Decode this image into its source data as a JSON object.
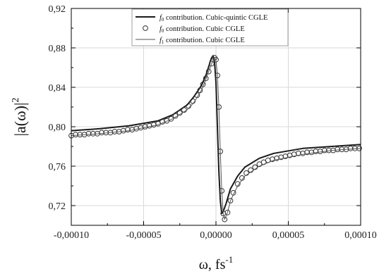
{
  "chart_data": {
    "type": "line",
    "xlabel": "ω, fs",
    "xlabel_superscript": "-1",
    "ylabel_prefix": "|a(ω)|",
    "ylabel_superscript": "2",
    "xlim": [
      -0.0001,
      0.0001
    ],
    "ylim": [
      0.7,
      0.92
    ],
    "xticks": [
      -0.0001,
      -5e-05,
      0.0,
      5e-05,
      0.0001
    ],
    "xtick_labels": [
      "-0,00010",
      "-0,00005",
      "0,00000",
      "0,00005",
      "0,00010"
    ],
    "yticks": [
      0.72,
      0.76,
      0.8,
      0.84,
      0.88,
      0.92
    ],
    "ytick_labels": [
      "0,72",
      "0,76",
      "0,80",
      "0,84",
      "0,88",
      "0,92"
    ],
    "grid": true,
    "legend_position": "top-center",
    "series": [
      {
        "name": "f0 contribution. Cubic-quintic CGLE",
        "legend_symbol": "f",
        "legend_subscript": "0",
        "legend_rest": " contribution. Cubic-quintic CGLE",
        "style": "line-thick",
        "color": "#1a1a1a",
        "x": [
          -0.0001,
          -8e-05,
          -6e-05,
          -4e-05,
          -3e-05,
          -2e-05,
          -1.5e-05,
          -1e-05,
          -7e-06,
          -5e-06,
          -4e-06,
          -3e-06,
          -2e-06,
          -1e-06,
          0.0,
          1e-06,
          2e-06,
          3e-06,
          4e-06,
          5e-06,
          7e-06,
          1e-05,
          1.5e-05,
          2e-05,
          3e-05,
          4e-05,
          6e-05,
          8e-05,
          0.0001
        ],
        "y": [
          0.796,
          0.798,
          0.801,
          0.806,
          0.812,
          0.822,
          0.831,
          0.842,
          0.852,
          0.861,
          0.866,
          0.87,
          0.872,
          0.866,
          0.845,
          0.8,
          0.755,
          0.725,
          0.712,
          0.714,
          0.722,
          0.737,
          0.75,
          0.759,
          0.768,
          0.773,
          0.778,
          0.78,
          0.782
        ]
      },
      {
        "name": "f0 contribution. Cubic CGLE",
        "legend_symbol": "f",
        "legend_subscript": "0",
        "legend_rest": " contribution. Cubic CGLE",
        "style": "markers",
        "color": "#333333",
        "x": [
          -0.0001,
          -9.7e-05,
          -9.4e-05,
          -9.1e-05,
          -8.8e-05,
          -8.5e-05,
          -8.2e-05,
          -7.9e-05,
          -7.6e-05,
          -7.3e-05,
          -7e-05,
          -6.7e-05,
          -6.4e-05,
          -6.1e-05,
          -5.8e-05,
          -5.5e-05,
          -5.2e-05,
          -4.9e-05,
          -4.6e-05,
          -4.3e-05,
          -4e-05,
          -3.7e-05,
          -3.4e-05,
          -3.1e-05,
          -2.8e-05,
          -2.5e-05,
          -2.2e-05,
          -1.9e-05,
          -1.6e-05,
          -1.3e-05,
          -1.1e-05,
          -9e-06,
          -7e-06,
          -5e-06,
          -3e-06,
          -1e-06,
          0.0,
          1e-06,
          2e-06,
          3e-06,
          4e-06,
          5e-06,
          6e-06,
          8e-06,
          1e-05,
          1.2e-05,
          1.5e-05,
          1.8e-05,
          2.1e-05,
          2.4e-05,
          2.7e-05,
          3e-05,
          3.3e-05,
          3.6e-05,
          3.9e-05,
          4.2e-05,
          4.5e-05,
          4.8e-05,
          5.1e-05,
          5.4e-05,
          5.7e-05,
          6e-05,
          6.3e-05,
          6.6e-05,
          6.9e-05,
          7.2e-05,
          7.5e-05,
          7.8e-05,
          8.1e-05,
          8.4e-05,
          8.7e-05,
          9e-05,
          9.3e-05,
          9.6e-05,
          9.9e-05
        ],
        "y": [
          0.791,
          0.792,
          0.792,
          0.792,
          0.793,
          0.793,
          0.793,
          0.794,
          0.794,
          0.794,
          0.795,
          0.795,
          0.796,
          0.797,
          0.797,
          0.798,
          0.799,
          0.8,
          0.801,
          0.802,
          0.803,
          0.805,
          0.806,
          0.808,
          0.811,
          0.814,
          0.817,
          0.821,
          0.826,
          0.832,
          0.837,
          0.843,
          0.849,
          0.856,
          0.864,
          0.87,
          0.868,
          0.852,
          0.82,
          0.775,
          0.735,
          0.712,
          0.706,
          0.713,
          0.725,
          0.733,
          0.742,
          0.748,
          0.753,
          0.756,
          0.759,
          0.762,
          0.764,
          0.766,
          0.767,
          0.768,
          0.769,
          0.77,
          0.771,
          0.772,
          0.773,
          0.773,
          0.774,
          0.774,
          0.775,
          0.775,
          0.776,
          0.776,
          0.776,
          0.777,
          0.777,
          0.777,
          0.778,
          0.778,
          0.778
        ]
      },
      {
        "name": "f1 contribution. Cubic CGLE",
        "legend_symbol": "f",
        "legend_subscript": "1",
        "legend_rest": " contribution. Cubic CGLE",
        "style": "line-thin",
        "color": "#555555",
        "x": [
          -0.0001,
          -8e-05,
          -6e-05,
          -4e-05,
          -3e-05,
          -2e-05,
          -1.5e-05,
          -1e-05,
          -7e-06,
          -5e-06,
          -3e-06,
          -1e-06,
          0.0,
          1e-06,
          2e-06,
          3e-06,
          4e-06,
          5e-06,
          6e-06,
          8e-06,
          1e-05,
          1.5e-05,
          2e-05,
          3e-05,
          4e-05,
          6e-05,
          8e-05,
          0.0001
        ],
        "y": [
          0.791,
          0.793,
          0.796,
          0.802,
          0.808,
          0.817,
          0.825,
          0.837,
          0.848,
          0.856,
          0.864,
          0.87,
          0.868,
          0.852,
          0.82,
          0.775,
          0.735,
          0.712,
          0.706,
          0.713,
          0.725,
          0.74,
          0.75,
          0.76,
          0.766,
          0.772,
          0.776,
          0.778
        ]
      }
    ]
  }
}
